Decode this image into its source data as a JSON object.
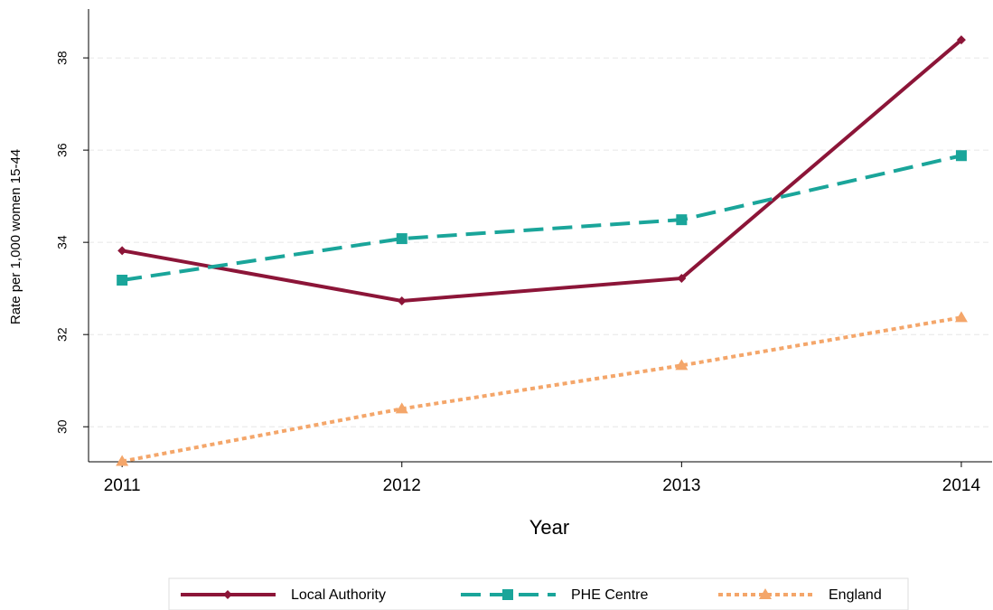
{
  "chart_data": {
    "type": "line",
    "x_label": "Year",
    "y_label": "Rate per 1,000 women 15-44",
    "x": [
      2011,
      2012,
      2013,
      2014
    ],
    "xlim": [
      2010.88,
      2014.11
    ],
    "xticks": [
      2011,
      2012,
      2013,
      2014
    ],
    "ylim": [
      29.24,
      39.06
    ],
    "yticks": [
      30,
      32,
      34,
      36,
      38
    ],
    "grid": true,
    "legend": "bottom",
    "series": [
      {
        "name": "Local Authority",
        "color": "#8c1538",
        "line_style": "solid",
        "marker": "diamond",
        "values": [
          33.82,
          32.73,
          33.22,
          38.39
        ]
      },
      {
        "name": "PHE Centre",
        "color": "#1aa59a",
        "line_style": "dashed",
        "marker": "square",
        "values": [
          33.18,
          34.08,
          34.49,
          35.88
        ]
      },
      {
        "name": "England",
        "color": "#f4a66a",
        "line_style": "dotted",
        "marker": "triangle",
        "values": [
          29.25,
          30.39,
          31.33,
          32.37
        ]
      }
    ]
  }
}
